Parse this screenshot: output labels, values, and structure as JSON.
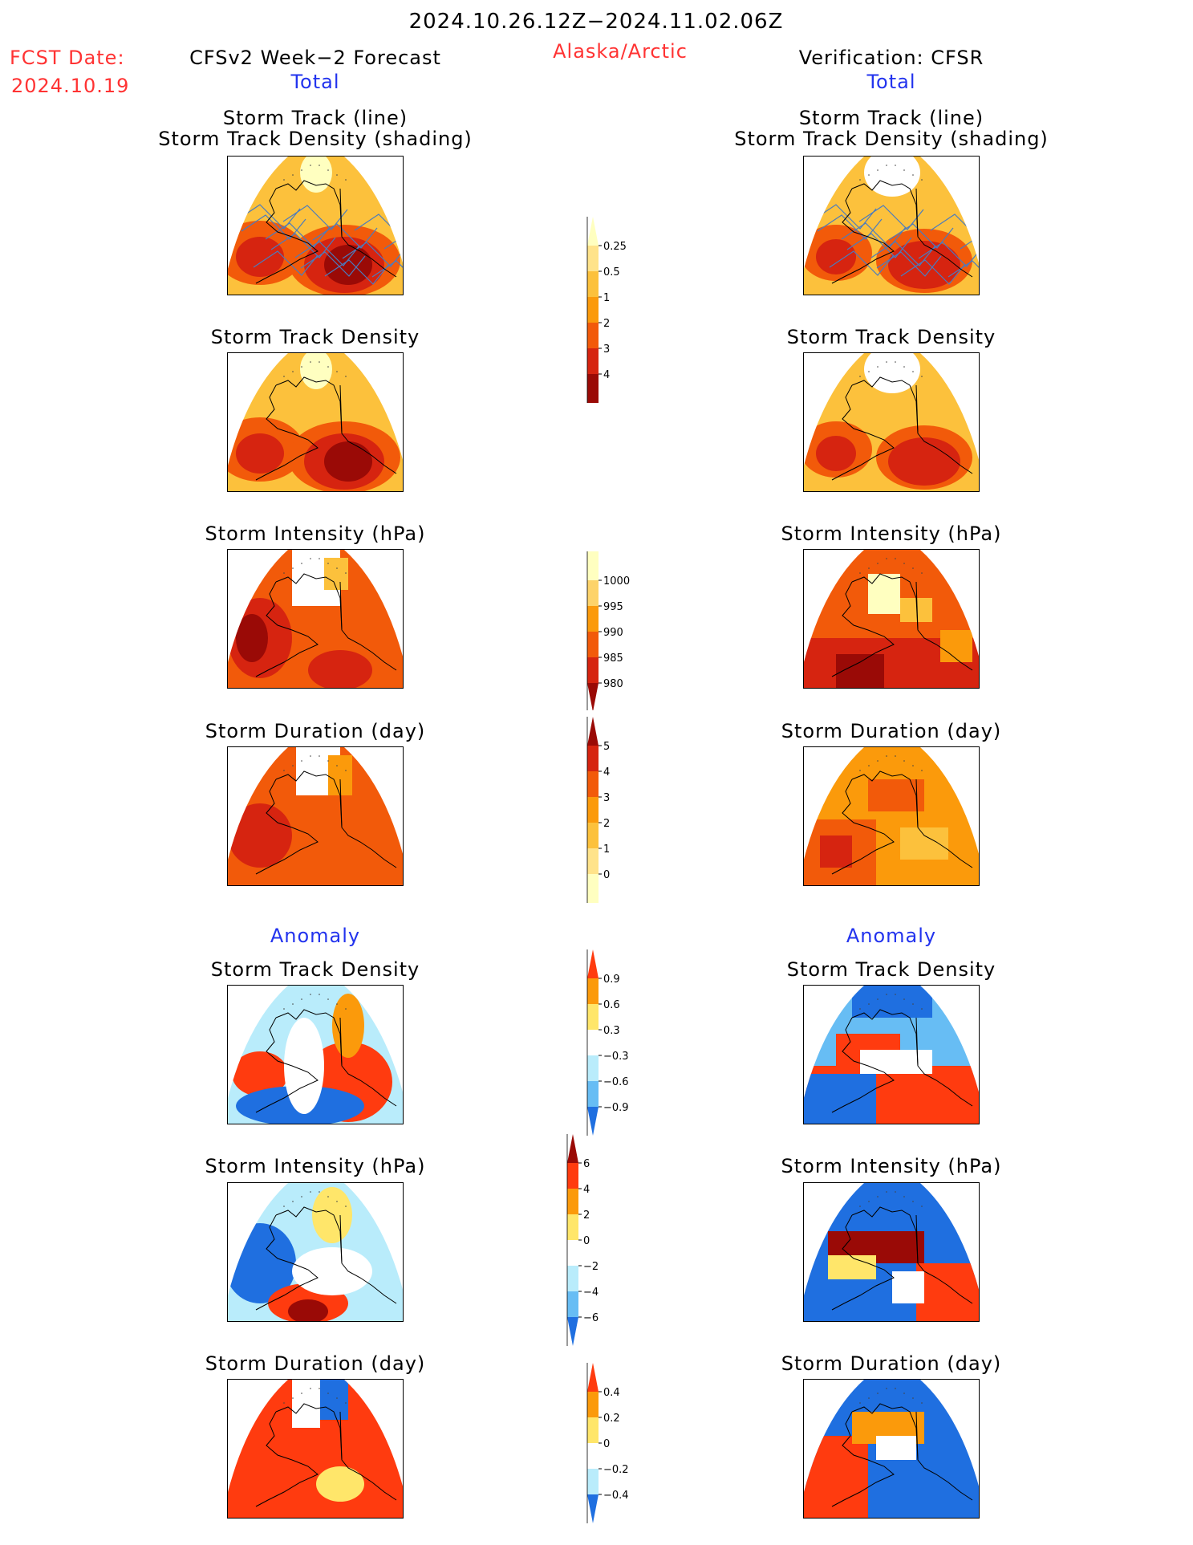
{
  "header": {
    "date_range": "2024.10.26.12Z−2024.11.02.06Z",
    "fcst_label": "FCST Date:",
    "fcst_date": "2024.10.19",
    "model_title": "CFSv2 Week−2 Forecast",
    "region": "Alaska/Arctic",
    "verification": "Verification: CFSR"
  },
  "sections": {
    "total": "Total",
    "anomaly": "Anomaly"
  },
  "panel_titles": {
    "track_line": "Storm Track (line)",
    "track_shading": "Storm Track Density (shading)",
    "density": "Storm Track Density",
    "intensity": "Storm Intensity (hPa)",
    "duration": "Storm Duration (day)"
  },
  "chart_data": [
    {
      "type": "heatmap",
      "title": "Storm Track Density (colorbar)",
      "levels": [
        "0.25",
        "0.5",
        "1",
        "2",
        "3",
        "4"
      ],
      "colors": [
        "#ffffc0",
        "#ffe38a",
        "#fcc13c",
        "#fb9a0b",
        "#f25a0a",
        "#d62410",
        "#9a0a06"
      ]
    },
    {
      "type": "heatmap",
      "title": "Storm Intensity (hPa) (colorbar)",
      "levels": [
        "1000",
        "995",
        "990",
        "985",
        "980"
      ],
      "colors": [
        "#ffffc0",
        "#fdd36a",
        "#fb9a0b",
        "#f25a0a",
        "#d62410",
        "#9a0a06"
      ]
    },
    {
      "type": "heatmap",
      "title": "Storm Duration (day) (colorbar)",
      "levels": [
        "5",
        "4",
        "3",
        "2",
        "1",
        "0"
      ],
      "colors": [
        "#9a0a06",
        "#d62410",
        "#f25a0a",
        "#fb9a0b",
        "#fcc13c",
        "#ffe38a",
        "#ffffc0"
      ]
    },
    {
      "type": "heatmap",
      "title": "Anomaly Storm Track Density (colorbar)",
      "levels": [
        "0.9",
        "0.6",
        "0.3",
        "−0.3",
        "−0.6",
        "−0.9"
      ],
      "colors": [
        "#ff3b0f",
        "#fb9a0b",
        "#ffe66a",
        "#ffffff",
        "#b9ecfb",
        "#67bdf4",
        "#1f6fe0"
      ]
    },
    {
      "type": "heatmap",
      "title": "Anomaly Storm Intensity (colorbar)",
      "levels": [
        "6",
        "4",
        "2",
        "0",
        "−2",
        "−4",
        "−6"
      ],
      "colors": [
        "#9a0a06",
        "#ff3b0f",
        "#fb9a0b",
        "#ffe66a",
        "#ffffff",
        "#b9ecfb",
        "#67bdf4",
        "#1f6fe0"
      ]
    },
    {
      "type": "heatmap",
      "title": "Anomaly Storm Duration (colorbar)",
      "levels": [
        "0.4",
        "0.2",
        "0",
        "−0.2",
        "−0.4"
      ],
      "colors": [
        "#ff3b0f",
        "#fb9a0b",
        "#ffe66a",
        "#ffffff",
        "#b9ecfb",
        "#1f6fe0"
      ]
    }
  ]
}
